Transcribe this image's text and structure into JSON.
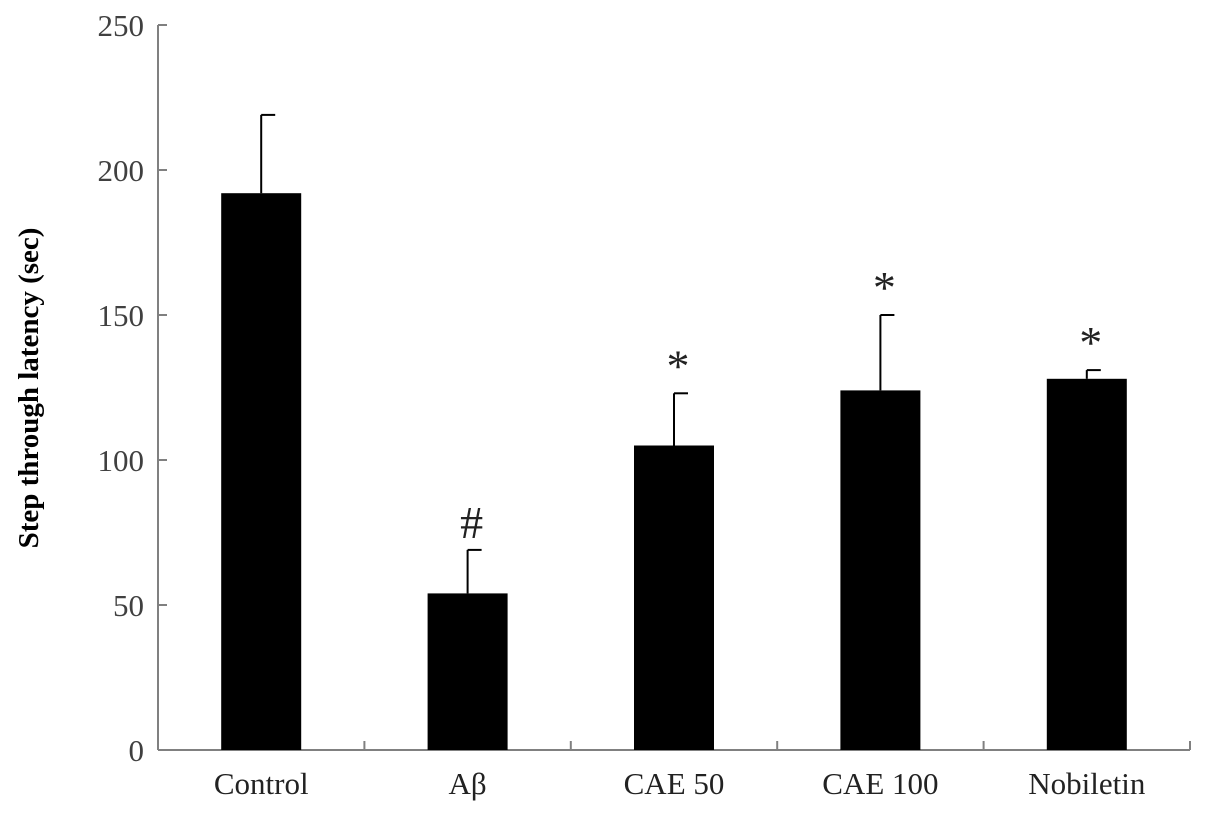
{
  "chart_data": {
    "type": "bar",
    "title": "",
    "xlabel": "",
    "ylabel": "Step through latency (sec)",
    "ylim": [
      0,
      250
    ],
    "yticks": [
      0,
      50,
      100,
      150,
      200,
      250
    ],
    "categories": [
      "Control",
      "Aβ",
      "CAE 50",
      "CAE 100",
      "Nobiletin"
    ],
    "values": [
      192,
      54,
      105,
      124,
      128
    ],
    "errors": [
      27,
      15,
      18,
      26,
      3
    ],
    "annotations": [
      "",
      "#",
      "*",
      "*",
      "*"
    ],
    "bar_color": "#000000",
    "grid": false,
    "legend": "none"
  }
}
